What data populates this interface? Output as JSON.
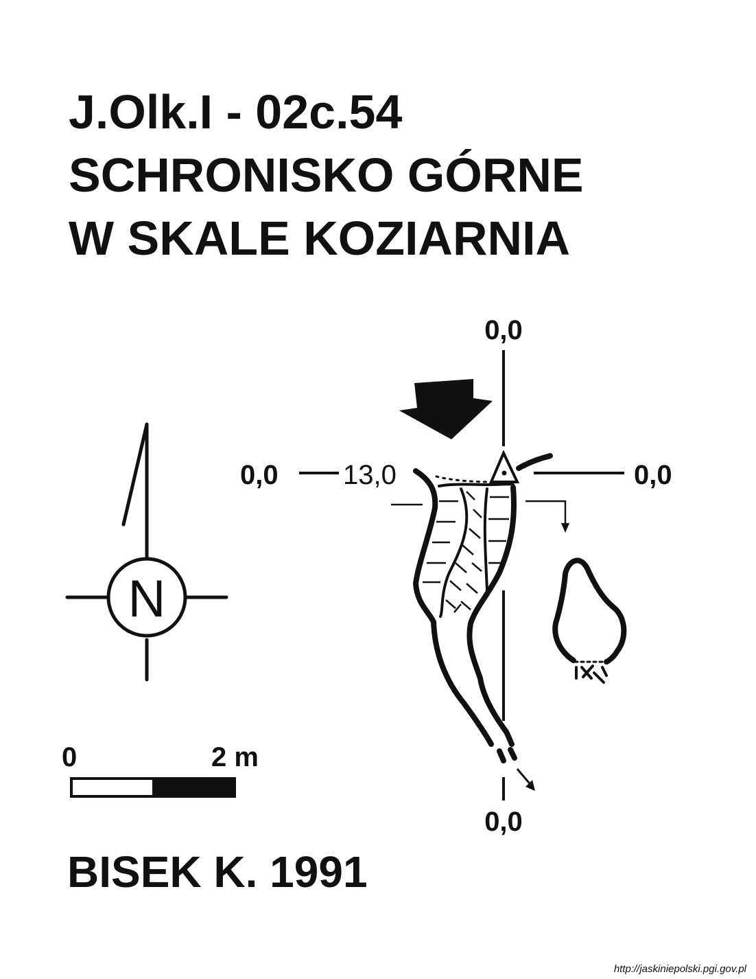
{
  "title": {
    "line1": "J.Olk.I - 02c.54",
    "line2": "SCHRONISKO GÓRNE",
    "line3": "W SKALE KOZIARNIA"
  },
  "profile_labels": {
    "top": "0,0",
    "left": "0,0",
    "depth": "13,0",
    "right": "0,0",
    "bottom": "0,0"
  },
  "north_arrow": {
    "letter": "N"
  },
  "scale_bar": {
    "start_label": "0",
    "end_label": "2 m"
  },
  "author": "BISEK K. 1991",
  "source_url": "http://jaskiniepolski.pgi.gov.pl",
  "colors": {
    "ink": "#111111",
    "background": "#ffffff"
  }
}
